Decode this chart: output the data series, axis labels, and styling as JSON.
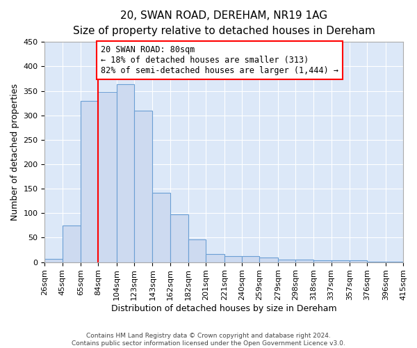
{
  "title": "20, SWAN ROAD, DEREHAM, NR19 1AG",
  "subtitle": "Size of property relative to detached houses in Dereham",
  "xlabel": "Distribution of detached houses by size in Dereham",
  "ylabel": "Number of detached properties",
  "bin_labels": [
    "26sqm",
    "45sqm",
    "65sqm",
    "84sqm",
    "104sqm",
    "123sqm",
    "143sqm",
    "162sqm",
    "182sqm",
    "201sqm",
    "221sqm",
    "240sqm",
    "259sqm",
    "279sqm",
    "298sqm",
    "318sqm",
    "337sqm",
    "357sqm",
    "376sqm",
    "396sqm",
    "415sqm"
  ],
  "bar_heights": [
    7,
    75,
    330,
    348,
    363,
    310,
    142,
    97,
    46,
    17,
    12,
    12,
    10,
    5,
    5,
    4,
    3,
    3,
    1,
    1
  ],
  "bar_color": "#cddaf0",
  "bar_edge_color": "#6b9fd4",
  "vline_x": 84,
  "vline_color": "red",
  "annotation_text": "20 SWAN ROAD: 80sqm\n← 18% of detached houses are smaller (313)\n82% of semi-detached houses are larger (1,444) →",
  "annotation_box_color": "white",
  "annotation_box_edge_color": "red",
  "ylim": [
    0,
    450
  ],
  "yticks": [
    0,
    50,
    100,
    150,
    200,
    250,
    300,
    350,
    400,
    450
  ],
  "footer_line1": "Contains HM Land Registry data © Crown copyright and database right 2024.",
  "footer_line2": "Contains public sector information licensed under the Open Government Licence v3.0.",
  "bg_color": "#ffffff",
  "plot_bg_color": "#dce8f8",
  "grid_color": "#ffffff",
  "title_fontsize": 11,
  "subtitle_fontsize": 10,
  "xlabel_fontsize": 9,
  "ylabel_fontsize": 9,
  "tick_fontsize": 8,
  "annotation_fontsize": 8.5,
  "footer_fontsize": 6.5
}
